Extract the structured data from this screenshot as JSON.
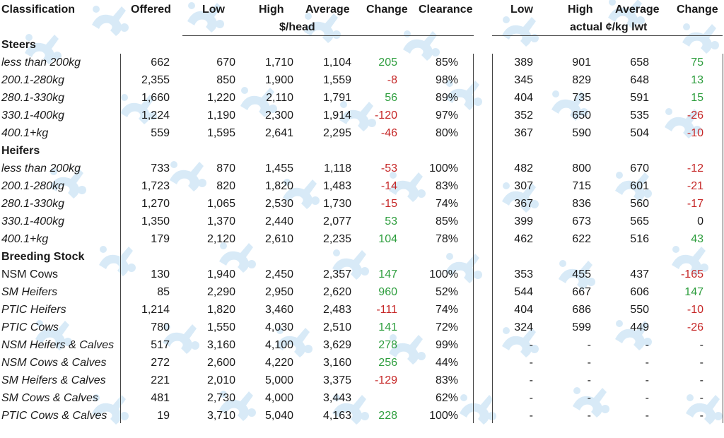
{
  "headers": {
    "classification": "Classification",
    "offered": "Offered",
    "low": "Low",
    "high": "High",
    "average": "Average",
    "change": "Change",
    "clearance": "Clearance",
    "low2": "Low",
    "high2": "High",
    "average2": "Average",
    "change2": "Change",
    "unit_head": "$/head",
    "unit_kg": "actual ¢/kg lwt"
  },
  "watermark_icon": "stylised-logo-icon",
  "colors": {
    "positive": "#2e9e3e",
    "negative": "#c62828",
    "watermark": "#b9daf2"
  },
  "sections": [
    {
      "title": "Steers",
      "rows": [
        {
          "label": "less than 200kg",
          "italic": true,
          "offered": "662",
          "low": "670",
          "high": "1,710",
          "average": "1,104",
          "change": "205",
          "clearance": "85%",
          "low2": "389",
          "high2": "901",
          "average2": "658",
          "change2": "75"
        },
        {
          "label": "200.1-280kg",
          "italic": true,
          "offered": "2,355",
          "low": "850",
          "high": "1,900",
          "average": "1,559",
          "change": "-8",
          "clearance": "98%",
          "low2": "345",
          "high2": "829",
          "average2": "648",
          "change2": "13"
        },
        {
          "label": "280.1-330kg",
          "italic": true,
          "offered": "1,660",
          "low": "1,220",
          "high": "2,110",
          "average": "1,791",
          "change": "56",
          "clearance": "89%",
          "low2": "404",
          "high2": "735",
          "average2": "591",
          "change2": "15"
        },
        {
          "label": "330.1-400kg",
          "italic": true,
          "offered": "1,224",
          "low": "1,190",
          "high": "2,300",
          "average": "1,914",
          "change": "-120",
          "clearance": "97%",
          "low2": "352",
          "high2": "650",
          "average2": "535",
          "change2": "-26"
        },
        {
          "label": "400.1+kg",
          "italic": true,
          "offered": "559",
          "low": "1,595",
          "high": "2,641",
          "average": "2,295",
          "change": "-46",
          "clearance": "80%",
          "low2": "367",
          "high2": "590",
          "average2": "504",
          "change2": "-10"
        }
      ]
    },
    {
      "title": "Heifers",
      "rows": [
        {
          "label": "less than 200kg",
          "italic": true,
          "offered": "733",
          "low": "870",
          "high": "1,455",
          "average": "1,118",
          "change": "-53",
          "clearance": "100%",
          "low2": "482",
          "high2": "800",
          "average2": "670",
          "change2": "-12"
        },
        {
          "label": "200.1-280kg",
          "italic": true,
          "offered": "1,723",
          "low": "820",
          "high": "1,820",
          "average": "1,483",
          "change": "-14",
          "clearance": "83%",
          "low2": "307",
          "high2": "715",
          "average2": "601",
          "change2": "-21"
        },
        {
          "label": "280.1-330kg",
          "italic": true,
          "offered": "1,270",
          "low": "1,065",
          "high": "2,530",
          "average": "1,730",
          "change": "-15",
          "clearance": "74%",
          "low2": "367",
          "high2": "836",
          "average2": "560",
          "change2": "-17"
        },
        {
          "label": "330.1-400kg",
          "italic": true,
          "offered": "1,350",
          "low": "1,370",
          "high": "2,440",
          "average": "2,077",
          "change": "53",
          "clearance": "85%",
          "low2": "399",
          "high2": "673",
          "average2": "565",
          "change2": "0"
        },
        {
          "label": "400.1+kg",
          "italic": true,
          "offered": "179",
          "low": "2,120",
          "high": "2,610",
          "average": "2,235",
          "change": "104",
          "clearance": "78%",
          "low2": "462",
          "high2": "622",
          "average2": "516",
          "change2": "43"
        }
      ]
    },
    {
      "title": "Breeding Stock",
      "rows": [
        {
          "label": "NSM Cows",
          "italic": false,
          "offered": "130",
          "low": "1,940",
          "high": "2,450",
          "average": "2,357",
          "change": "147",
          "clearance": "100%",
          "low2": "353",
          "high2": "455",
          "average2": "437",
          "change2": "-165"
        },
        {
          "label": "SM Heifers",
          "italic": true,
          "offered": "85",
          "low": "2,290",
          "high": "2,950",
          "average": "2,620",
          "change": "960",
          "clearance": "52%",
          "low2": "544",
          "high2": "667",
          "average2": "606",
          "change2": "147"
        },
        {
          "label": "PTIC Heifers",
          "italic": true,
          "offered": "1,214",
          "low": "1,820",
          "high": "3,460",
          "average": "2,483",
          "change": "-111",
          "clearance": "74%",
          "low2": "404",
          "high2": "686",
          "average2": "550",
          "change2": "-10"
        },
        {
          "label": "PTIC Cows",
          "italic": true,
          "offered": "780",
          "low": "1,550",
          "high": "4,030",
          "average": "2,510",
          "change": "141",
          "clearance": "72%",
          "low2": "324",
          "high2": "599",
          "average2": "449",
          "change2": "-26"
        },
        {
          "label": "NSM Heifers & Calves",
          "italic": true,
          "offered": "517",
          "low": "3,160",
          "high": "4,100",
          "average": "3,629",
          "change": "278",
          "clearance": "99%",
          "low2": "-",
          "high2": "-",
          "average2": "-",
          "change2": "-"
        },
        {
          "label": "NSM Cows & Calves",
          "italic": true,
          "offered": "272",
          "low": "2,600",
          "high": "4,220",
          "average": "3,160",
          "change": "256",
          "clearance": "44%",
          "low2": "-",
          "high2": "-",
          "average2": "-",
          "change2": "-"
        },
        {
          "label": "SM Heifers & Calves",
          "italic": true,
          "offered": "221",
          "low": "2,010",
          "high": "5,000",
          "average": "3,375",
          "change": "-129",
          "clearance": "83%",
          "low2": "-",
          "high2": "-",
          "average2": "-",
          "change2": "-"
        },
        {
          "label": "SM Cows & Calves",
          "italic": true,
          "offered": "481",
          "low": "2,730",
          "high": "4,000",
          "average": "3,443",
          "change": "",
          "clearance": "62%",
          "low2": "-",
          "high2": "-",
          "average2": "-",
          "change2": "-"
        },
        {
          "label": "PTIC Cows & Calves",
          "italic": true,
          "offered": "19",
          "low": "3,710",
          "high": "5,040",
          "average": "4,163",
          "change": "228",
          "clearance": "100%",
          "low2": "-",
          "high2": "-",
          "average2": "-",
          "change2": "-"
        }
      ]
    }
  ]
}
